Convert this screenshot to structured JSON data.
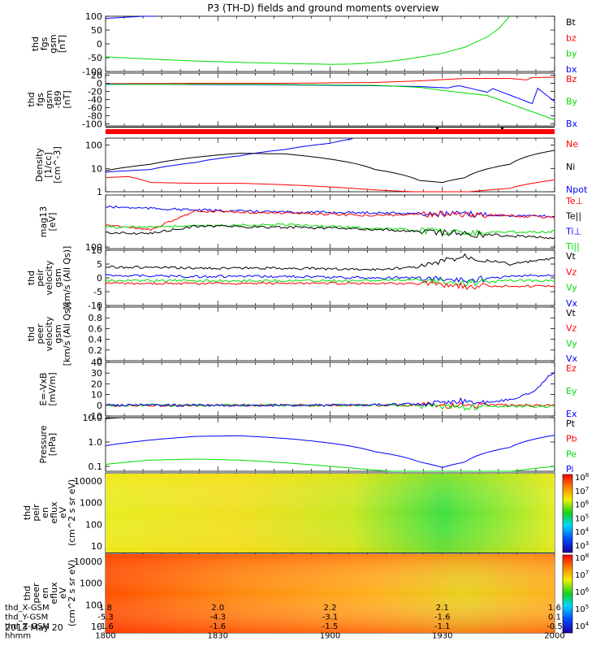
{
  "title": "P3 (TH-D) fields and ground moments overview",
  "date": "2013 May 20",
  "colors": {
    "black": "#000000",
    "red": "#ff0000",
    "green": "#00dd00",
    "blue": "#0000ff"
  },
  "time_axis": {
    "tick_labels": [
      "1800",
      "1830",
      "1900",
      "1930",
      "2000"
    ],
    "rows": [
      {
        "label": "thd_X-GSM",
        "values": [
          "1.8",
          "2.0",
          "2.2",
          "2.1",
          "1.6"
        ]
      },
      {
        "label": "thd_Y-GSM",
        "values": [
          "-5.3",
          "-4.3",
          "-3.1",
          "-1.6",
          "0.1"
        ]
      },
      {
        "label": "thd_Z-GSM",
        "values": [
          "-1.6",
          "-1.6",
          "-1.5",
          "-1.1",
          "-0.5"
        ]
      },
      {
        "label": "hhmm",
        "values": [
          "1800",
          "1830",
          "1900",
          "1930",
          "2000"
        ]
      }
    ]
  },
  "chart_data": [
    {
      "type": "line",
      "ylabel": [
        "thd",
        "fgs",
        "gsm",
        "[nT]"
      ],
      "ylim": [
        -100,
        100
      ],
      "yticks": [
        100,
        50,
        0,
        -50,
        -100
      ],
      "legend": [
        {
          "name": "Bt",
          "color": "#000000"
        },
        {
          "name": "bz",
          "color": "#ff0000"
        },
        {
          "name": "by",
          "color": "#00dd00"
        },
        {
          "name": "bx",
          "color": "#0000ff"
        }
      ],
      "series": [
        {
          "name": "by",
          "color": "#00dd00",
          "x": [
            0,
            0.1,
            0.2,
            0.3,
            0.4,
            0.5,
            0.55,
            0.6,
            0.65,
            0.7,
            0.75,
            0.8,
            0.85,
            0.88,
            0.9
          ],
          "y": [
            -47,
            -55,
            -62,
            -67,
            -71,
            -74,
            -73,
            -68,
            -60,
            -48,
            -34,
            -12,
            25,
            60,
            105
          ]
        },
        {
          "name": "bx",
          "color": "#0000ff",
          "x": [
            0,
            0.05,
            0.1,
            0.12
          ],
          "y": [
            92,
            97,
            101,
            105
          ]
        }
      ]
    },
    {
      "type": "line",
      "ylabel": [
        "thd",
        "fgs",
        "gsm",
        "-t89",
        "[nT]"
      ],
      "ylim": [
        -105,
        25
      ],
      "yticks": [
        20,
        0,
        -20,
        -40,
        -60,
        -80,
        -100
      ],
      "legend": [
        {
          "name": "Bz",
          "color": "#ff0000"
        },
        {
          "name": "By",
          "color": "#00dd00"
        },
        {
          "name": "Bx",
          "color": "#0000ff"
        }
      ],
      "series": [
        {
          "name": "Bz",
          "color": "#ff0000",
          "x": [
            0,
            0.2,
            0.4,
            0.6,
            0.7,
            0.8,
            0.9,
            0.94,
            0.95,
            1
          ],
          "y": [
            -1,
            0,
            0,
            2,
            6,
            12,
            12,
            8,
            14,
            15
          ]
        },
        {
          "name": "Bx",
          "color": "#0000ff",
          "x": [
            0,
            0.2,
            0.4,
            0.6,
            0.7,
            0.77,
            0.78,
            0.85,
            0.86,
            0.95,
            0.96,
            1
          ],
          "y": [
            -2,
            -3,
            -4,
            -6,
            -8,
            -12,
            -4,
            -22,
            -12,
            -50,
            -10,
            -45
          ]
        },
        {
          "name": "By",
          "color": "#00dd00",
          "x": [
            0,
            0.2,
            0.4,
            0.6,
            0.7,
            0.77,
            0.85,
            0.9,
            0.95,
            1
          ],
          "y": [
            -3,
            -2,
            -3,
            -5,
            -10,
            -20,
            -30,
            -50,
            -70,
            -90
          ]
        }
      ]
    },
    {
      "type": "line",
      "ylabel": [
        "Density",
        "[1/cc]",
        "[cm^-3]"
      ],
      "ylim_log10": [
        0,
        2.3
      ],
      "yticks": [
        "100",
        "10",
        "1"
      ],
      "legend": [
        {
          "name": "Ne",
          "color": "#ff0000"
        },
        {
          "name": "Ni",
          "color": "#000000"
        },
        {
          "name": "Npot",
          "color": "#0000ff"
        }
      ],
      "series": [
        {
          "name": "Npot",
          "color": "#0000ff",
          "x": [
            0,
            0.1,
            0.2,
            0.3,
            0.4,
            0.5,
            0.56
          ],
          "y": [
            7,
            9,
            18,
            35,
            65,
            120,
            200
          ]
        },
        {
          "name": "Ni",
          "color": "#000000",
          "x": [
            0,
            0.1,
            0.2,
            0.3,
            0.4,
            0.5,
            0.6,
            0.7,
            0.75,
            0.8,
            0.9,
            1
          ],
          "y": [
            8,
            15,
            30,
            45,
            42,
            25,
            9,
            3,
            2.5,
            4,
            15,
            60
          ]
        },
        {
          "name": "Ne",
          "color": "#ff0000",
          "x": [
            0,
            0.05,
            0.1,
            0.2,
            0.3,
            0.4,
            0.5,
            0.6,
            0.7,
            0.8,
            0.9,
            1
          ],
          "y": [
            4,
            4.5,
            2.5,
            2.3,
            2.3,
            2.0,
            1.6,
            1.2,
            0.95,
            0.95,
            1.4,
            3.2
          ]
        }
      ]
    },
    {
      "type": "line",
      "ylabel": [
        "mag13",
        "[eV]"
      ],
      "yticks": [
        "100"
      ],
      "legend": [
        {
          "name": "Te⊥",
          "color": "#ff0000"
        },
        {
          "name": "Te||",
          "color": "#000000"
        },
        {
          "name": "Ti⊥",
          "color": "#0000ff"
        },
        {
          "name": "Ti||",
          "color": "#00dd00"
        }
      ],
      "series": [
        {
          "name": "Ti⊥",
          "color": "#0000ff",
          "x": [
            0,
            0.2,
            0.4,
            0.6,
            0.8,
            1
          ],
          "y": [
            0.22,
            0.28,
            0.32,
            0.33,
            0.36,
            0.4
          ]
        },
        {
          "name": "Te⊥",
          "color": "#ff0000",
          "x": [
            0,
            0.1,
            0.2,
            0.4,
            0.6,
            0.8,
            1
          ],
          "y": [
            0.55,
            0.65,
            0.3,
            0.34,
            0.38,
            0.35,
            0.42
          ]
        },
        {
          "name": "Ti||",
          "color": "#00dd00",
          "x": [
            0,
            0.2,
            0.4,
            0.6,
            0.8,
            1
          ],
          "y": [
            0.6,
            0.58,
            0.55,
            0.62,
            0.7,
            0.68
          ]
        },
        {
          "name": "Te||",
          "color": "#000000",
          "x": [
            0,
            0.1,
            0.2,
            0.4,
            0.6,
            0.8,
            1
          ],
          "y": [
            0.7,
            0.72,
            0.58,
            0.6,
            0.64,
            0.72,
            0.8
          ]
        }
      ]
    },
    {
      "type": "line",
      "ylabel": [
        "thd",
        "peir",
        "velocity",
        "gsm",
        "[km/s (All Qs)]"
      ],
      "ylim": [
        -10,
        10
      ],
      "yticks": [
        10,
        5,
        0,
        -5,
        -10
      ],
      "legend": [
        {
          "name": "Vt",
          "color": "#000000"
        },
        {
          "name": "Vz",
          "color": "#ff0000"
        },
        {
          "name": "Vy",
          "color": "#00dd00"
        },
        {
          "name": "Vx",
          "color": "#0000ff"
        }
      ],
      "series": [
        {
          "name": "Vt",
          "color": "#000000",
          "x": [
            0,
            0.2,
            0.4,
            0.6,
            0.7,
            0.8,
            0.9,
            1
          ],
          "y": [
            4,
            3.5,
            3.5,
            3,
            4,
            8,
            5,
            7
          ]
        },
        {
          "name": "Vx",
          "color": "#0000ff",
          "x": [
            0,
            0.2,
            0.4,
            0.6,
            0.7,
            0.8,
            0.9,
            1
          ],
          "y": [
            1,
            0.5,
            0.5,
            0,
            0,
            -1,
            0.5,
            1
          ]
        },
        {
          "name": "Vy",
          "color": "#00dd00",
          "x": [
            0,
            0.2,
            0.4,
            0.6,
            0.7,
            0.8,
            0.9,
            1
          ],
          "y": [
            -1,
            -1,
            -1,
            -1,
            -0.5,
            -2,
            -1,
            -1
          ]
        },
        {
          "name": "Vz",
          "color": "#ff0000",
          "x": [
            0,
            0.2,
            0.4,
            0.6,
            0.7,
            0.8,
            0.9,
            1
          ],
          "y": [
            -2,
            -2,
            -2,
            -2,
            -2,
            -3,
            -3,
            -3
          ]
        }
      ]
    },
    {
      "type": "line",
      "ylabel": [
        "thd",
        "peer",
        "velocity",
        "gsm",
        "[km/s (All Qs)]"
      ],
      "ylim": [
        0,
        1
      ],
      "yticks": [
        1.0,
        0.8,
        0.6,
        0.4,
        0.2,
        0.0
      ],
      "legend": [
        {
          "name": "Vt",
          "color": "#000000"
        },
        {
          "name": "Vz",
          "color": "#ff0000"
        },
        {
          "name": "Vy",
          "color": "#00dd00"
        },
        {
          "name": "Vx",
          "color": "#0000ff"
        }
      ],
      "series": []
    },
    {
      "type": "line",
      "ylabel": [
        "E=-VxB",
        "[mV/m]"
      ],
      "ylim": [
        -10,
        40
      ],
      "yticks": [
        40,
        30,
        20,
        10,
        0,
        -10
      ],
      "legend": [
        {
          "name": "Ez",
          "color": "#ff0000"
        },
        {
          "name": "Ey",
          "color": "#00dd00"
        },
        {
          "name": "Ex",
          "color": "#0000ff"
        }
      ],
      "series": [
        {
          "name": "Ez",
          "color": "#ff0000",
          "x": [
            0,
            0.5,
            1
          ],
          "y": [
            0,
            0,
            0
          ]
        },
        {
          "name": "Ey",
          "color": "#00dd00",
          "x": [
            0,
            0.5,
            0.7,
            0.8,
            0.9,
            1
          ],
          "y": [
            0,
            0,
            0,
            -2,
            -1,
            -1
          ]
        },
        {
          "name": "Ex",
          "color": "#0000ff",
          "x": [
            0,
            0.5,
            0.7,
            0.8,
            0.85,
            0.9,
            0.95,
            1
          ],
          "y": [
            0,
            0,
            1,
            4,
            3,
            5,
            12,
            32
          ]
        }
      ]
    },
    {
      "type": "line",
      "ylabel": [
        "Pressure",
        "[nPa]"
      ],
      "ylim_log10": [
        -1.2,
        1.0
      ],
      "yticks": [
        "10.0",
        "1.0",
        "0.1"
      ],
      "legend": [
        {
          "name": "Pt",
          "color": "#000000"
        },
        {
          "name": "Pb",
          "color": "#ff0000"
        },
        {
          "name": "Pe",
          "color": "#00dd00"
        },
        {
          "name": "Pi",
          "color": "#0000ff"
        }
      ],
      "series": [
        {
          "name": "Pt",
          "color": "#000000",
          "x": [
            0,
            0.1,
            0.2,
            0.33
          ],
          "y": [
            9,
            12,
            15,
            20
          ]
        },
        {
          "name": "Pi",
          "color": "#0000ff",
          "x": [
            0,
            0.1,
            0.2,
            0.3,
            0.4,
            0.5,
            0.6,
            0.7,
            0.75,
            0.8,
            0.9,
            1
          ],
          "y": [
            0.7,
            1.2,
            1.7,
            1.8,
            1.4,
            0.9,
            0.4,
            0.15,
            0.09,
            0.15,
            0.6,
            1.9
          ]
        },
        {
          "name": "Pe",
          "color": "#00dd00",
          "x": [
            0,
            0.1,
            0.2,
            0.3,
            0.4,
            0.5,
            0.6,
            0.7,
            0.8,
            0.9,
            1
          ],
          "y": [
            0.12,
            0.18,
            0.2,
            0.18,
            0.14,
            0.1,
            0.07,
            0.05,
            0.05,
            0.06,
            0.1
          ]
        }
      ]
    },
    {
      "type": "heatmap",
      "ylabel": [
        "thd",
        "peir",
        "en",
        "eflux",
        "eV",
        "(cm^2 s sr eV)"
      ],
      "yticks": [
        "10000",
        "1000",
        "100",
        "10"
      ],
      "colorbar_ticks": [
        "10^8",
        "10^7",
        "10^6",
        "10^5",
        "10^4",
        "10^3"
      ]
    },
    {
      "type": "heatmap",
      "ylabel": [
        "thd",
        "peer",
        "en",
        "eflux",
        "eV",
        "(cm^2 s sr eV)"
      ],
      "yticks": [
        "10000",
        "1000",
        "100",
        "10"
      ],
      "colorbar_ticks": [
        "10^8",
        "10^7",
        "10^6",
        "10^5",
        "10^4"
      ]
    }
  ]
}
